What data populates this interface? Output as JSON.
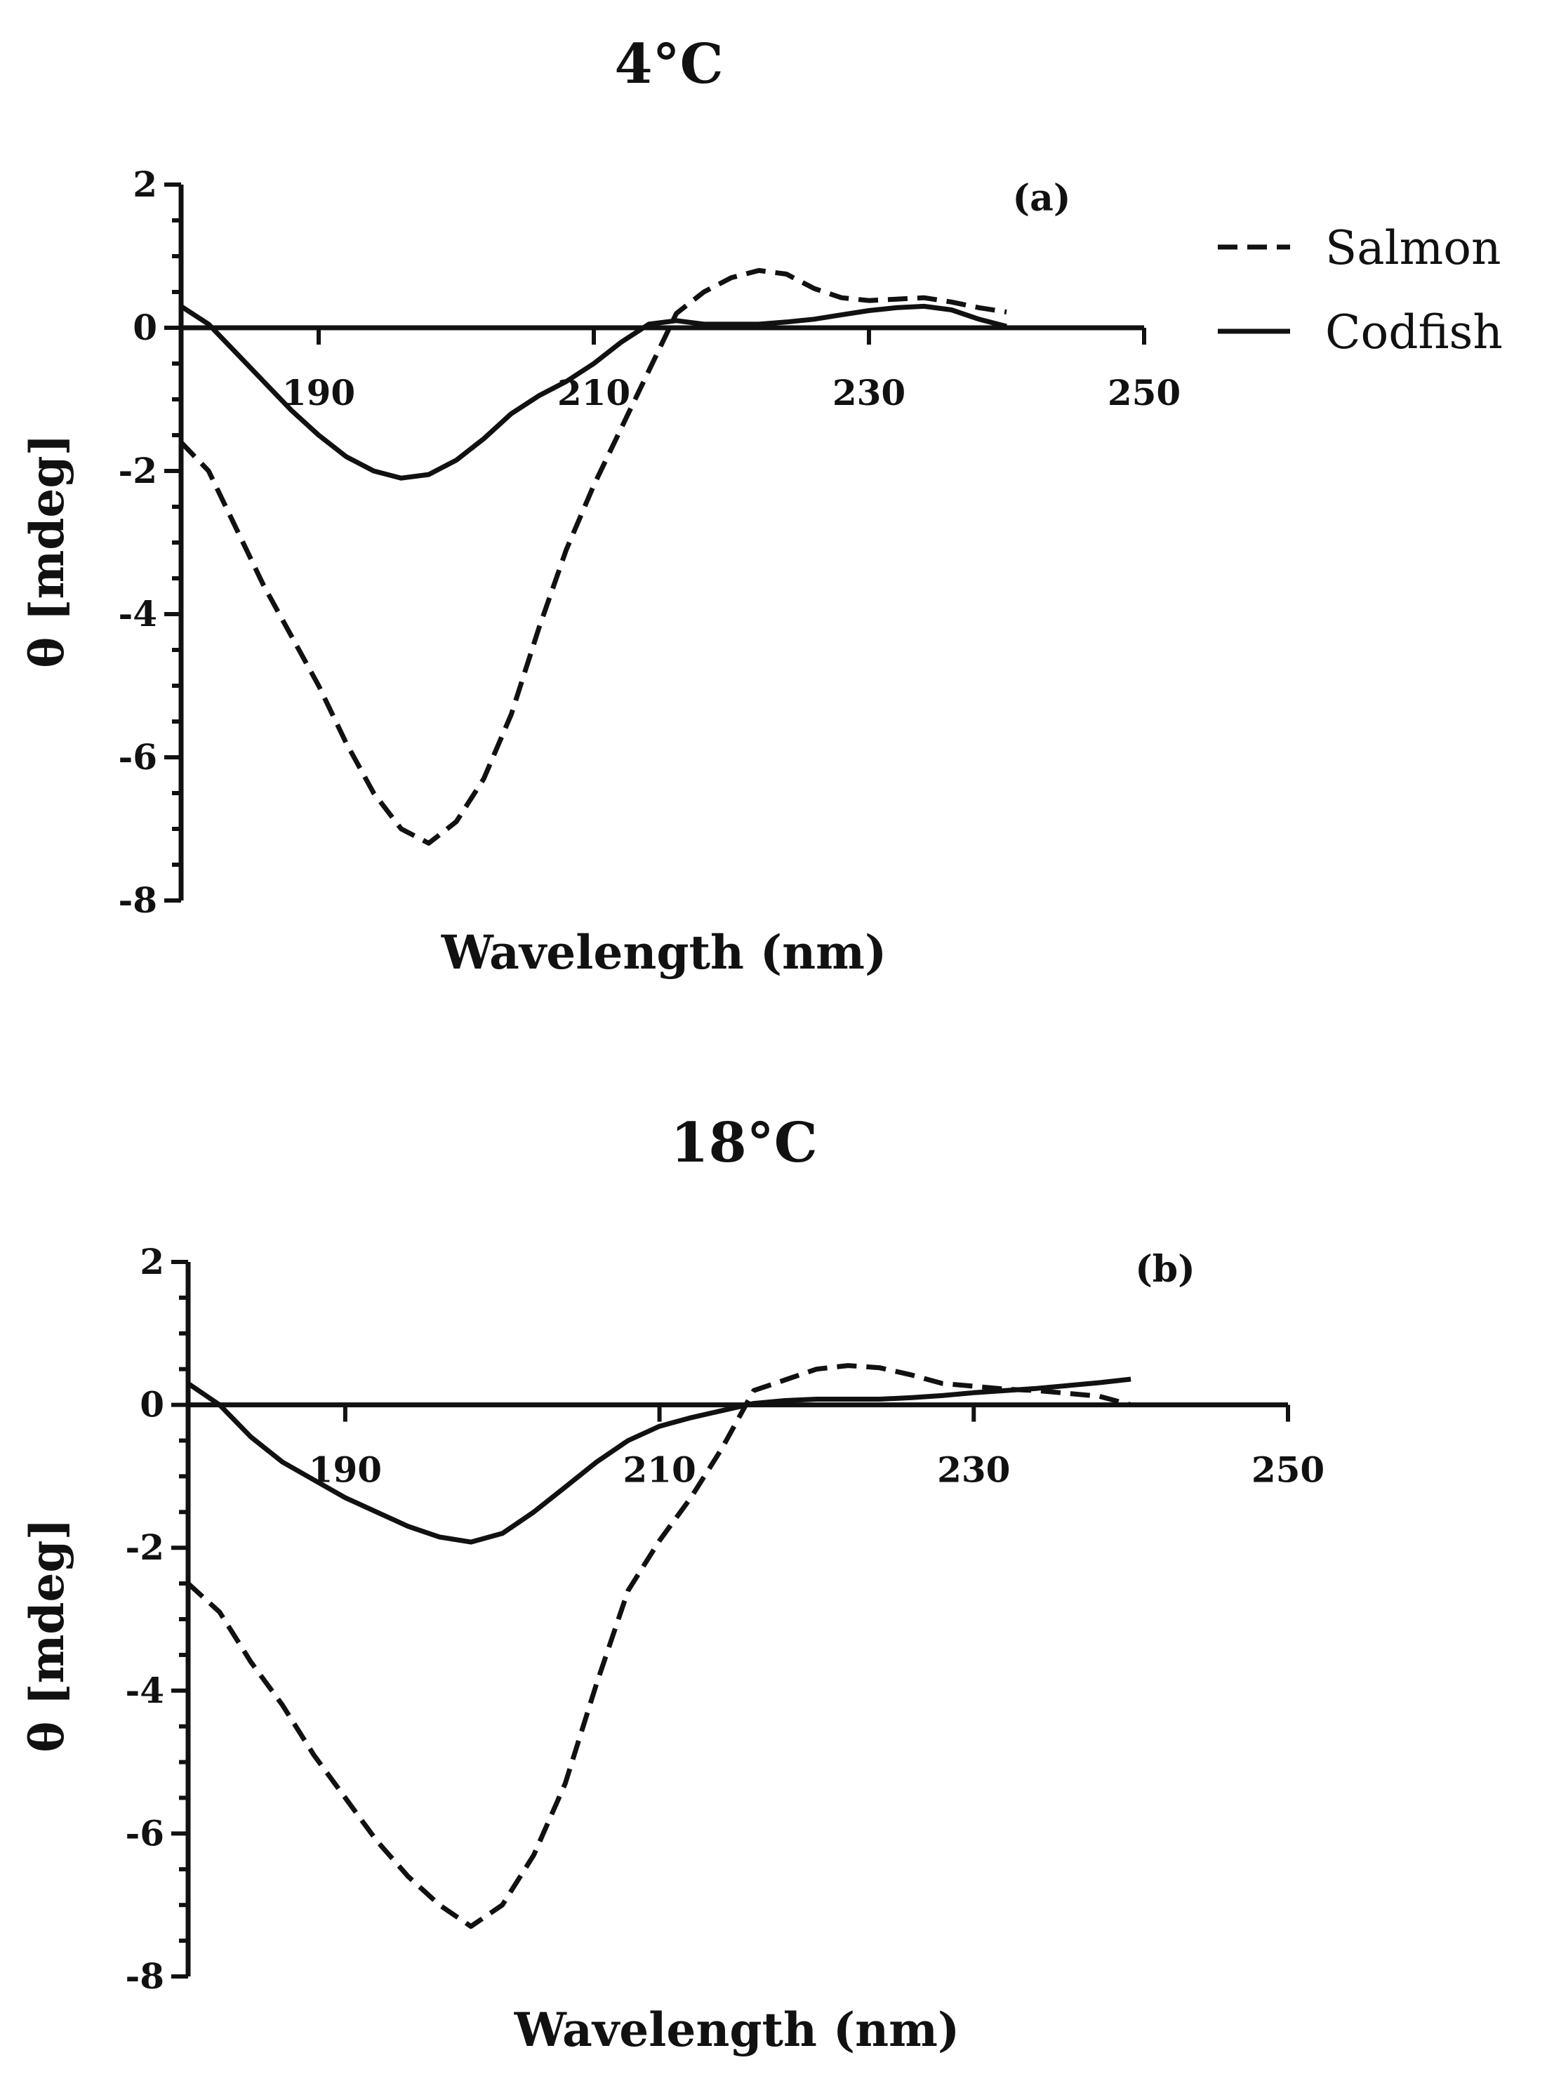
{
  "legend": [
    {
      "name": "Salmon",
      "style": "dashed"
    },
    {
      "name": "Codfish",
      "style": "solid"
    }
  ],
  "chart_data": [
    {
      "type": "line",
      "title": "4°C",
      "panel_label": "(a)",
      "xlabel": "Wavelength (nm)",
      "ylabel": "θ [mdeg]",
      "xlim": [
        180,
        250
      ],
      "ylim": [
        -8,
        2
      ],
      "xticks": [
        190,
        210,
        230,
        250
      ],
      "yticks": [
        2,
        0,
        -2,
        -4,
        -6,
        -8
      ],
      "series": [
        {
          "name": "Salmon",
          "style": "dashed",
          "x": [
            180,
            182,
            184,
            186,
            188,
            190,
            192,
            194,
            196,
            198,
            200,
            202,
            204,
            206,
            208,
            210,
            212,
            214,
            216,
            218,
            220,
            222,
            224,
            226,
            228,
            230,
            232,
            234,
            236,
            238,
            240
          ],
          "y": [
            -1.6,
            -2.0,
            -2.8,
            -3.6,
            -4.3,
            -5.0,
            -5.8,
            -6.5,
            -7.0,
            -7.2,
            -6.9,
            -6.3,
            -5.4,
            -4.2,
            -3.1,
            -2.2,
            -1.4,
            -0.6,
            0.2,
            0.5,
            0.7,
            0.8,
            0.75,
            0.55,
            0.42,
            0.38,
            0.4,
            0.42,
            0.36,
            0.28,
            0.22
          ]
        },
        {
          "name": "Codfish",
          "style": "solid",
          "x": [
            180,
            182,
            184,
            186,
            188,
            190,
            192,
            194,
            196,
            198,
            200,
            202,
            204,
            206,
            208,
            210,
            212,
            214,
            216,
            218,
            220,
            222,
            224,
            226,
            228,
            230,
            232,
            234,
            236,
            238,
            240
          ],
          "y": [
            0.3,
            0.05,
            -0.35,
            -0.75,
            -1.15,
            -1.5,
            -1.8,
            -2.0,
            -2.1,
            -2.05,
            -1.85,
            -1.55,
            -1.2,
            -0.95,
            -0.75,
            -0.5,
            -0.2,
            0.05,
            0.1,
            0.05,
            0.05,
            0.05,
            0.08,
            0.12,
            0.18,
            0.24,
            0.28,
            0.3,
            0.25,
            0.12,
            0.02
          ]
        }
      ]
    },
    {
      "type": "line",
      "title": "18°C",
      "panel_label": "(b)",
      "xlabel": "Wavelength (nm)",
      "ylabel": "θ [mdeg]",
      "xlim": [
        180,
        250
      ],
      "ylim": [
        -8,
        2
      ],
      "xticks": [
        190,
        210,
        230,
        250
      ],
      "yticks": [
        2,
        0,
        -2,
        -4,
        -6,
        -8
      ],
      "series": [
        {
          "name": "Salmon",
          "style": "dashed",
          "x": [
            180,
            182,
            184,
            186,
            188,
            190,
            192,
            194,
            196,
            198,
            200,
            202,
            204,
            206,
            208,
            210,
            212,
            214,
            216,
            218,
            220,
            222,
            224,
            226,
            228,
            230,
            232,
            234,
            236,
            238,
            240
          ],
          "y": [
            -2.5,
            -2.9,
            -3.6,
            -4.2,
            -4.9,
            -5.5,
            -6.1,
            -6.6,
            -7.0,
            -7.3,
            -7.0,
            -6.3,
            -5.3,
            -3.9,
            -2.6,
            -1.9,
            -1.3,
            -0.6,
            0.2,
            0.35,
            0.5,
            0.55,
            0.52,
            0.42,
            0.3,
            0.26,
            0.22,
            0.2,
            0.16,
            0.12,
            0.0
          ]
        },
        {
          "name": "Codfish",
          "style": "solid",
          "x": [
            180,
            182,
            184,
            186,
            188,
            190,
            192,
            194,
            196,
            198,
            200,
            202,
            204,
            206,
            208,
            210,
            212,
            214,
            216,
            218,
            220,
            222,
            224,
            226,
            228,
            230,
            232,
            234,
            236,
            238,
            240
          ],
          "y": [
            0.3,
            0.0,
            -0.45,
            -0.8,
            -1.05,
            -1.3,
            -1.5,
            -1.7,
            -1.85,
            -1.92,
            -1.8,
            -1.5,
            -1.15,
            -0.8,
            -0.5,
            -0.3,
            -0.18,
            -0.08,
            0.02,
            0.06,
            0.08,
            0.08,
            0.08,
            0.1,
            0.13,
            0.17,
            0.2,
            0.23,
            0.27,
            0.31,
            0.36
          ]
        }
      ]
    }
  ]
}
